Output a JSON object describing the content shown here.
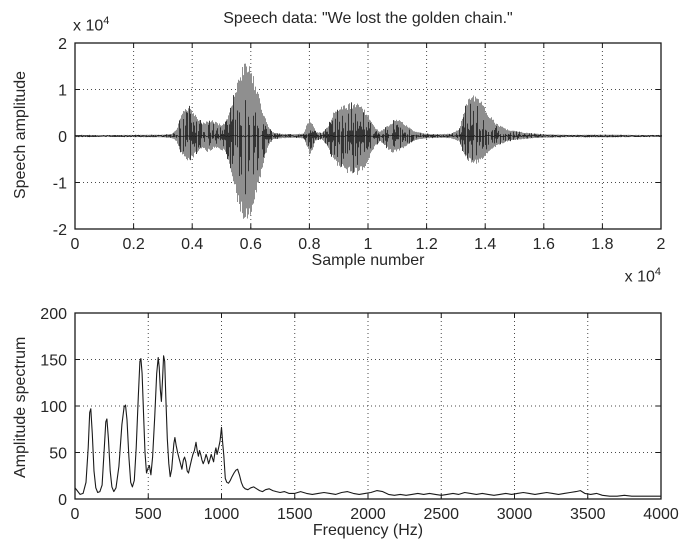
{
  "figure": {
    "background": "#ffffff",
    "text_color": "#262626",
    "line_color": "#1a1a1a",
    "grid_color": "#4a4a4a",
    "waveform_fill_color": "#8f8f8f",
    "waveform_dark_color": "#2b2b2b"
  },
  "chart_data": [
    {
      "type": "line",
      "subtype": "speech-waveform",
      "title": "Speech data: \"We lost the golden chain.\"",
      "xlabel": "Sample number",
      "ylabel": "Speech amplitude",
      "y_scale_note": {
        "base": "x 10",
        "exp": "4"
      },
      "x_scale_note": {
        "base": "x 10",
        "exp": "4"
      },
      "xlim": [
        0,
        2
      ],
      "ylim": [
        -2,
        2
      ],
      "grid": true,
      "legend": "none",
      "xtick_values": [
        0,
        0.2,
        0.4,
        0.6,
        0.8,
        1,
        1.2,
        1.4,
        1.6,
        1.8,
        2
      ],
      "xtick_labels": [
        "0",
        "0.2",
        "0.4",
        "0.6",
        "0.8",
        "1",
        "1.2",
        "1.4",
        "1.6",
        "1.8",
        "2"
      ],
      "ytick_values": [
        -2,
        -1,
        0,
        1,
        2
      ],
      "ytick_labels": [
        "-2",
        "-1",
        "0",
        "1",
        "2"
      ],
      "units_note": "x values are samples x10^4, y values are amplitude x10^4",
      "envelope_columns": [
        "sample_x10k",
        "upper_amplitude_x10k",
        "lower_amplitude_x10k"
      ],
      "envelope": [
        [
          0.0,
          0.025,
          0.025
        ],
        [
          0.1,
          0.02,
          0.02
        ],
        [
          0.2,
          0.025,
          0.025
        ],
        [
          0.3,
          0.03,
          0.03
        ],
        [
          0.33,
          0.05,
          0.05
        ],
        [
          0.345,
          0.15,
          0.12
        ],
        [
          0.36,
          0.45,
          0.38
        ],
        [
          0.375,
          0.62,
          0.52
        ],
        [
          0.39,
          0.65,
          0.55
        ],
        [
          0.405,
          0.5,
          0.45
        ],
        [
          0.42,
          0.38,
          0.33
        ],
        [
          0.435,
          0.3,
          0.28
        ],
        [
          0.45,
          0.32,
          0.35
        ],
        [
          0.465,
          0.35,
          0.3
        ],
        [
          0.48,
          0.3,
          0.26
        ],
        [
          0.495,
          0.26,
          0.3
        ],
        [
          0.51,
          0.3,
          0.35
        ],
        [
          0.525,
          0.5,
          0.6
        ],
        [
          0.54,
          0.9,
          1.05
        ],
        [
          0.555,
          1.25,
          1.5
        ],
        [
          0.57,
          1.5,
          1.8
        ],
        [
          0.585,
          1.62,
          1.9
        ],
        [
          0.6,
          1.45,
          1.85
        ],
        [
          0.615,
          1.15,
          1.4
        ],
        [
          0.63,
          0.8,
          0.95
        ],
        [
          0.645,
          0.45,
          0.5
        ],
        [
          0.66,
          0.18,
          0.2
        ],
        [
          0.675,
          0.08,
          0.08
        ],
        [
          0.7,
          0.05,
          0.05
        ],
        [
          0.75,
          0.04,
          0.04
        ],
        [
          0.78,
          0.06,
          0.06
        ],
        [
          0.79,
          0.28,
          0.25
        ],
        [
          0.8,
          0.38,
          0.42
        ],
        [
          0.81,
          0.28,
          0.3
        ],
        [
          0.82,
          0.1,
          0.1
        ],
        [
          0.84,
          0.07,
          0.07
        ],
        [
          0.86,
          0.2,
          0.22
        ],
        [
          0.88,
          0.5,
          0.55
        ],
        [
          0.9,
          0.62,
          0.72
        ],
        [
          0.92,
          0.68,
          0.78
        ],
        [
          0.94,
          0.72,
          0.82
        ],
        [
          0.96,
          0.75,
          0.85
        ],
        [
          0.98,
          0.65,
          0.75
        ],
        [
          1.0,
          0.45,
          0.55
        ],
        [
          1.02,
          0.2,
          0.25
        ],
        [
          1.04,
          0.1,
          0.12
        ],
        [
          1.06,
          0.2,
          0.25
        ],
        [
          1.08,
          0.32,
          0.38
        ],
        [
          1.1,
          0.4,
          0.35
        ],
        [
          1.12,
          0.3,
          0.28
        ],
        [
          1.14,
          0.18,
          0.16
        ],
        [
          1.16,
          0.1,
          0.09
        ],
        [
          1.19,
          0.06,
          0.06
        ],
        [
          1.23,
          0.04,
          0.04
        ],
        [
          1.28,
          0.05,
          0.05
        ],
        [
          1.31,
          0.15,
          0.12
        ],
        [
          1.325,
          0.55,
          0.4
        ],
        [
          1.34,
          0.8,
          0.55
        ],
        [
          1.355,
          0.9,
          0.62
        ],
        [
          1.37,
          0.85,
          0.6
        ],
        [
          1.385,
          0.75,
          0.52
        ],
        [
          1.4,
          0.6,
          0.45
        ],
        [
          1.415,
          0.45,
          0.35
        ],
        [
          1.43,
          0.32,
          0.25
        ],
        [
          1.45,
          0.22,
          0.18
        ],
        [
          1.47,
          0.16,
          0.13
        ],
        [
          1.5,
          0.11,
          0.09
        ],
        [
          1.53,
          0.08,
          0.07
        ],
        [
          1.56,
          0.06,
          0.05
        ],
        [
          1.6,
          0.04,
          0.04
        ],
        [
          1.65,
          0.03,
          0.03
        ],
        [
          1.7,
          0.025,
          0.025
        ],
        [
          1.8,
          0.03,
          0.03
        ],
        [
          1.9,
          0.025,
          0.025
        ],
        [
          2.0,
          0.02,
          0.02
        ]
      ]
    },
    {
      "type": "line",
      "subtype": "amplitude-spectrum",
      "title": "",
      "xlabel": "Frequency (Hz)",
      "ylabel": "Amplitude spectrum",
      "xlim": [
        0,
        4000
      ],
      "ylim": [
        0,
        200
      ],
      "grid": true,
      "legend": "none",
      "xtick_values": [
        0,
        500,
        1000,
        1500,
        2000,
        2500,
        3000,
        3500,
        4000
      ],
      "xtick_labels": [
        "0",
        "500",
        "1000",
        "1500",
        "2000",
        "2500",
        "3000",
        "3500",
        "4000"
      ],
      "ytick_values": [
        0,
        50,
        100,
        150,
        200
      ],
      "ytick_labels": [
        "0",
        "50",
        "100",
        "150",
        "200"
      ],
      "points_columns": [
        "frequency_hz",
        "amplitude"
      ],
      "points": [
        [
          0,
          12
        ],
        [
          15,
          9
        ],
        [
          35,
          5
        ],
        [
          55,
          6
        ],
        [
          75,
          18
        ],
        [
          90,
          55
        ],
        [
          100,
          93
        ],
        [
          108,
          97
        ],
        [
          118,
          70
        ],
        [
          130,
          30
        ],
        [
          142,
          12
        ],
        [
          155,
          7
        ],
        [
          170,
          8
        ],
        [
          185,
          15
        ],
        [
          200,
          55
        ],
        [
          210,
          83
        ],
        [
          218,
          86
        ],
        [
          228,
          65
        ],
        [
          240,
          30
        ],
        [
          252,
          13
        ],
        [
          265,
          8
        ],
        [
          280,
          12
        ],
        [
          300,
          35
        ],
        [
          320,
          80
        ],
        [
          335,
          99
        ],
        [
          345,
          101
        ],
        [
          355,
          85
        ],
        [
          368,
          45
        ],
        [
          380,
          18
        ],
        [
          392,
          13
        ],
        [
          405,
          20
        ],
        [
          418,
          55
        ],
        [
          432,
          110
        ],
        [
          443,
          148
        ],
        [
          450,
          151
        ],
        [
          458,
          135
        ],
        [
          468,
          90
        ],
        [
          478,
          50
        ],
        [
          488,
          28
        ],
        [
          498,
          33
        ],
        [
          508,
          36
        ],
        [
          518,
          26
        ],
        [
          530,
          45
        ],
        [
          545,
          90
        ],
        [
          558,
          135
        ],
        [
          568,
          152
        ],
        [
          575,
          142
        ],
        [
          582,
          118
        ],
        [
          590,
          105
        ],
        [
          598,
          130
        ],
        [
          605,
          154
        ],
        [
          612,
          148
        ],
        [
          620,
          110
        ],
        [
          630,
          65
        ],
        [
          640,
          38
        ],
        [
          650,
          24
        ],
        [
          660,
          32
        ],
        [
          668,
          48
        ],
        [
          675,
          60
        ],
        [
          682,
          66
        ],
        [
          690,
          58
        ],
        [
          700,
          50
        ],
        [
          710,
          44
        ],
        [
          720,
          38
        ],
        [
          730,
          32
        ],
        [
          740,
          42
        ],
        [
          748,
          45
        ],
        [
          757,
          40
        ],
        [
          766,
          30
        ],
        [
          775,
          28
        ],
        [
          785,
          35
        ],
        [
          795,
          42
        ],
        [
          805,
          48
        ],
        [
          815,
          52
        ],
        [
          826,
          61
        ],
        [
          834,
          52
        ],
        [
          842,
          46
        ],
        [
          850,
          52
        ],
        [
          858,
          48
        ],
        [
          866,
          42
        ],
        [
          875,
          38
        ],
        [
          885,
          42
        ],
        [
          895,
          48
        ],
        [
          903,
          44
        ],
        [
          912,
          38
        ],
        [
          920,
          42
        ],
        [
          930,
          48
        ],
        [
          938,
          44
        ],
        [
          946,
          40
        ],
        [
          955,
          50
        ],
        [
          962,
          55
        ],
        [
          970,
          48
        ],
        [
          980,
          55
        ],
        [
          990,
          62
        ],
        [
          1000,
          77
        ],
        [
          1008,
          60
        ],
        [
          1016,
          47
        ],
        [
          1026,
          22
        ],
        [
          1036,
          18
        ],
        [
          1048,
          17
        ],
        [
          1060,
          20
        ],
        [
          1072,
          24
        ],
        [
          1085,
          28
        ],
        [
          1098,
          31
        ],
        [
          1110,
          32
        ],
        [
          1122,
          26
        ],
        [
          1135,
          18
        ],
        [
          1148,
          13
        ],
        [
          1162,
          11
        ],
        [
          1180,
          10
        ],
        [
          1200,
          12
        ],
        [
          1220,
          13
        ],
        [
          1240,
          11
        ],
        [
          1260,
          9
        ],
        [
          1280,
          8
        ],
        [
          1300,
          10
        ],
        [
          1325,
          11
        ],
        [
          1350,
          9
        ],
        [
          1375,
          8
        ],
        [
          1400,
          7
        ],
        [
          1430,
          8
        ],
        [
          1460,
          6
        ],
        [
          1500,
          6
        ],
        [
          1540,
          8
        ],
        [
          1580,
          6
        ],
        [
          1620,
          5
        ],
        [
          1660,
          6
        ],
        [
          1700,
          7
        ],
        [
          1740,
          6
        ],
        [
          1780,
          5
        ],
        [
          1820,
          7
        ],
        [
          1860,
          8
        ],
        [
          1900,
          6
        ],
        [
          1940,
          5
        ],
        [
          1980,
          6
        ],
        [
          2020,
          7
        ],
        [
          2060,
          9
        ],
        [
          2100,
          8
        ],
        [
          2140,
          5
        ],
        [
          2180,
          4
        ],
        [
          2220,
          5
        ],
        [
          2260,
          4
        ],
        [
          2300,
          5
        ],
        [
          2340,
          6
        ],
        [
          2380,
          5
        ],
        [
          2420,
          6
        ],
        [
          2460,
          5
        ],
        [
          2500,
          4
        ],
        [
          2540,
          5
        ],
        [
          2580,
          6
        ],
        [
          2620,
          5
        ],
        [
          2660,
          7
        ],
        [
          2700,
          6
        ],
        [
          2740,
          5
        ],
        [
          2780,
          6
        ],
        [
          2820,
          5
        ],
        [
          2860,
          4
        ],
        [
          2900,
          5
        ],
        [
          2940,
          6
        ],
        [
          2980,
          5
        ],
        [
          3020,
          6
        ],
        [
          3060,
          7
        ],
        [
          3100,
          6
        ],
        [
          3140,
          5
        ],
        [
          3180,
          6
        ],
        [
          3220,
          7
        ],
        [
          3260,
          6
        ],
        [
          3300,
          5
        ],
        [
          3340,
          6
        ],
        [
          3380,
          7
        ],
        [
          3420,
          8
        ],
        [
          3450,
          9
        ],
        [
          3480,
          6
        ],
        [
          3520,
          5
        ],
        [
          3560,
          6
        ],
        [
          3600,
          4
        ],
        [
          3650,
          3
        ],
        [
          3700,
          3
        ],
        [
          3750,
          4
        ],
        [
          3800,
          3
        ],
        [
          3850,
          3
        ],
        [
          3900,
          3
        ],
        [
          3950,
          3
        ],
        [
          4000,
          3
        ]
      ]
    }
  ]
}
